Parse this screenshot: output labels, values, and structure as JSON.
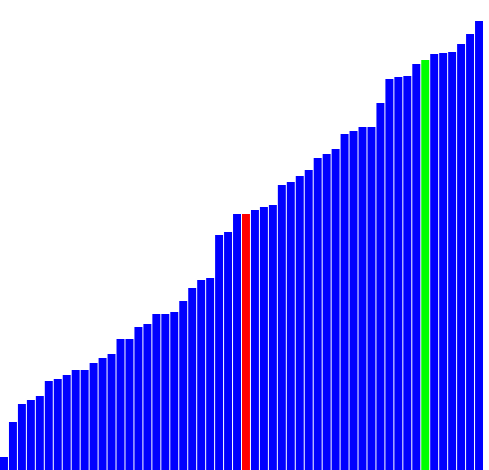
{
  "chart_data": {
    "type": "bar",
    "title": "",
    "xlabel": "",
    "ylabel": "",
    "ylim": [
      0,
      470
    ],
    "grid": false,
    "legend": "none",
    "colors": {
      "default": "#0000ff",
      "highlight_red": "#ff0000",
      "highlight_green": "#00ff00"
    },
    "highlights": [
      {
        "index": 27,
        "color": "#ff0000"
      },
      {
        "index": 47,
        "color": "#00ff00"
      }
    ],
    "values": [
      13,
      48,
      66,
      70,
      74,
      89,
      91,
      95,
      100,
      100,
      107,
      112,
      116,
      131,
      131,
      143,
      146,
      156,
      156,
      158,
      169,
      182,
      190,
      192,
      235,
      238,
      256,
      256,
      260,
      263,
      265,
      285,
      288,
      294,
      300,
      312,
      316,
      321,
      336,
      339,
      343,
      343,
      367,
      391,
      393,
      394,
      406,
      410,
      416,
      417,
      418,
      426,
      436,
      449
    ]
  }
}
